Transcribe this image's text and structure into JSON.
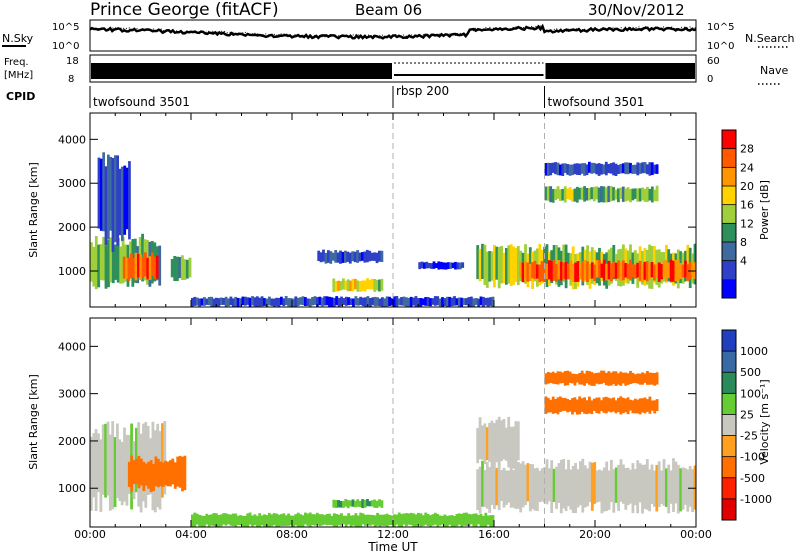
{
  "header": {
    "station": "Prince George (fitACF)",
    "beam": "Beam 06",
    "date": "30/Nov/2012"
  },
  "noise_panel": {
    "left_label": "N.Sky",
    "right_label": "N.Search",
    "left_ticks": [
      "10^5",
      "10^0"
    ],
    "right_ticks": [
      "10^5",
      "10^0"
    ]
  },
  "freq_panel": {
    "left_label_1": "Freq.",
    "left_label_2": "[MHz]",
    "right_label": "Nave",
    "left_ticks": [
      "18",
      "8"
    ],
    "right_ticks": [
      "60",
      "0"
    ]
  },
  "cpid": {
    "label": "CPID",
    "segments": [
      {
        "name": "twofsound 3501",
        "start_hour": 0,
        "end_hour": 12
      },
      {
        "name": "rbsp 200",
        "start_hour": 12,
        "end_hour": 18
      },
      {
        "name": "twofsound 3501",
        "start_hour": 18,
        "end_hour": 24
      }
    ]
  },
  "power_colorbar": {
    "label": "Power [dB]",
    "ticks": [
      "28",
      "24",
      "20",
      "16",
      "12",
      "8",
      "4"
    ],
    "colors": [
      "#ff0000",
      "#ff5a00",
      "#ff9600",
      "#ffd200",
      "#9fcf3a",
      "#2f8f5a",
      "#3f6a9f",
      "#2e3fc8",
      "#0000ff"
    ]
  },
  "velocity_colorbar": {
    "label": "Velocity [m s⁻¹]",
    "ticks": [
      "1000",
      "500",
      "100",
      "25",
      "-25",
      "-100",
      "-500",
      "-1000"
    ],
    "colors": [
      "#1f3fbf",
      "#3a6aa5",
      "#2a8a5a",
      "#66cc33",
      "#c8c8c0",
      "#ffa020",
      "#ff7000",
      "#ff2000",
      "#e00000"
    ]
  },
  "chart_data": {
    "type": "heatmap",
    "xlabel": "Time UT",
    "x_ticks": [
      "00:00",
      "04:00",
      "08:00",
      "12:00",
      "16:00",
      "20:00",
      "00:00"
    ],
    "xlim_hours": [
      0,
      24
    ],
    "ylabel": "Slant Range [km]",
    "y_ticks": [
      1000,
      2000,
      3000,
      4000
    ],
    "ylim_km": [
      180,
      4600
    ],
    "dashed_markers_hours": [
      12,
      18
    ],
    "panels": [
      {
        "name": "power",
        "units": "dB",
        "regions": [
          {
            "t0": 0.0,
            "t1": 2.8,
            "r0": 700,
            "r1": 1700,
            "value": 14
          },
          {
            "t0": 1.3,
            "t1": 2.7,
            "r0": 850,
            "r1": 1350,
            "value": 26
          },
          {
            "t0": 3.2,
            "t1": 4.0,
            "r0": 800,
            "r1": 1300,
            "value": 12
          },
          {
            "t0": 0.3,
            "t1": 1.6,
            "r0": 1700,
            "r1": 3500,
            "value": 6
          },
          {
            "t0": 4.0,
            "t1": 16.0,
            "r0": 200,
            "r1": 400,
            "value": 6
          },
          {
            "t0": 9.0,
            "t1": 11.6,
            "r0": 1200,
            "r1": 1450,
            "value": 5
          },
          {
            "t0": 9.6,
            "t1": 11.6,
            "r0": 550,
            "r1": 800,
            "value": 18
          },
          {
            "t0": 13.0,
            "t1": 14.8,
            "r0": 1050,
            "r1": 1200,
            "value": 5
          },
          {
            "t0": 15.3,
            "t1": 24.0,
            "r0": 700,
            "r1": 1500,
            "value": 16
          },
          {
            "t0": 17.0,
            "t1": 24.0,
            "r0": 800,
            "r1": 1200,
            "value": 27
          },
          {
            "t0": 18.0,
            "t1": 22.5,
            "r0": 2600,
            "r1": 2900,
            "value": 14
          },
          {
            "t0": 18.0,
            "t1": 22.5,
            "r0": 3200,
            "r1": 3450,
            "value": 6
          }
        ]
      },
      {
        "name": "velocity",
        "units": "m/s",
        "regions": [
          {
            "t0": 0.0,
            "t1": 3.0,
            "r0": 700,
            "r1": 2200,
            "value": 0
          },
          {
            "t0": 1.5,
            "t1": 3.8,
            "r0": 1000,
            "r1": 1600,
            "value": -200
          },
          {
            "t0": 4.0,
            "t1": 16.0,
            "r0": 200,
            "r1": 450,
            "value": 60
          },
          {
            "t0": 9.6,
            "t1": 11.6,
            "r0": 600,
            "r1": 750,
            "value": 90
          },
          {
            "t0": 15.3,
            "t1": 24.0,
            "r0": 600,
            "r1": 1500,
            "value": 0
          },
          {
            "t0": 15.3,
            "t1": 17.0,
            "r0": 1500,
            "r1": 2400,
            "value": 0
          },
          {
            "t0": 18.0,
            "t1": 22.5,
            "r0": 2600,
            "r1": 2900,
            "value": -300
          },
          {
            "t0": 18.0,
            "t1": 22.5,
            "r0": 3200,
            "r1": 3450,
            "value": -200
          }
        ]
      }
    ]
  }
}
